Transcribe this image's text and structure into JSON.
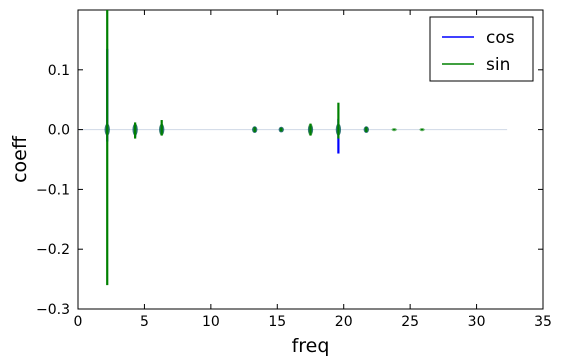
{
  "chart_data": {
    "type": "line",
    "title": "",
    "xlabel": "freq",
    "ylabel": "coeff",
    "xlim": [
      0,
      35
    ],
    "ylim": [
      -0.3,
      0.2
    ],
    "xticks": [
      0,
      5,
      10,
      15,
      20,
      25,
      30,
      35
    ],
    "yticks": [
      -0.3,
      -0.2,
      -0.1,
      0.0,
      0.1
    ],
    "ytick_labels": [
      "−0.3",
      "−0.2",
      "−0.1",
      "0.0",
      "0.1"
    ],
    "grid": false,
    "legend_position": "top-right",
    "x_extent": [
      0,
      32.3
    ],
    "series": [
      {
        "name": "cos",
        "color": "#0000ff",
        "spikes": [
          {
            "x": 2.2,
            "min": -0.02,
            "max": 0.135
          },
          {
            "x": 4.3,
            "min": -0.012,
            "max": 0.008
          },
          {
            "x": 6.3,
            "min": -0.006,
            "max": 0.009
          },
          {
            "x": 13.3,
            "min": -0.004,
            "max": 0.004
          },
          {
            "x": 15.3,
            "min": -0.003,
            "max": 0.003
          },
          {
            "x": 17.5,
            "min": -0.006,
            "max": 0.006
          },
          {
            "x": 19.6,
            "min": -0.04,
            "max": 0.018
          },
          {
            "x": 21.7,
            "min": -0.004,
            "max": 0.004
          }
        ]
      },
      {
        "name": "sin",
        "color": "#008000",
        "spikes": [
          {
            "x": 2.2,
            "min": -0.26,
            "max": 0.2
          },
          {
            "x": 4.3,
            "min": -0.015,
            "max": 0.012
          },
          {
            "x": 6.3,
            "min": -0.01,
            "max": 0.016
          },
          {
            "x": 13.3,
            "min": -0.004,
            "max": 0.004
          },
          {
            "x": 15.3,
            "min": -0.003,
            "max": 0.003
          },
          {
            "x": 17.5,
            "min": -0.01,
            "max": 0.01
          },
          {
            "x": 19.6,
            "min": -0.015,
            "max": 0.045
          },
          {
            "x": 21.7,
            "min": -0.004,
            "max": 0.004
          },
          {
            "x": 23.8,
            "min": -0.001,
            "max": 0.001
          },
          {
            "x": 25.9,
            "min": -0.001,
            "max": 0.001
          }
        ]
      }
    ]
  }
}
